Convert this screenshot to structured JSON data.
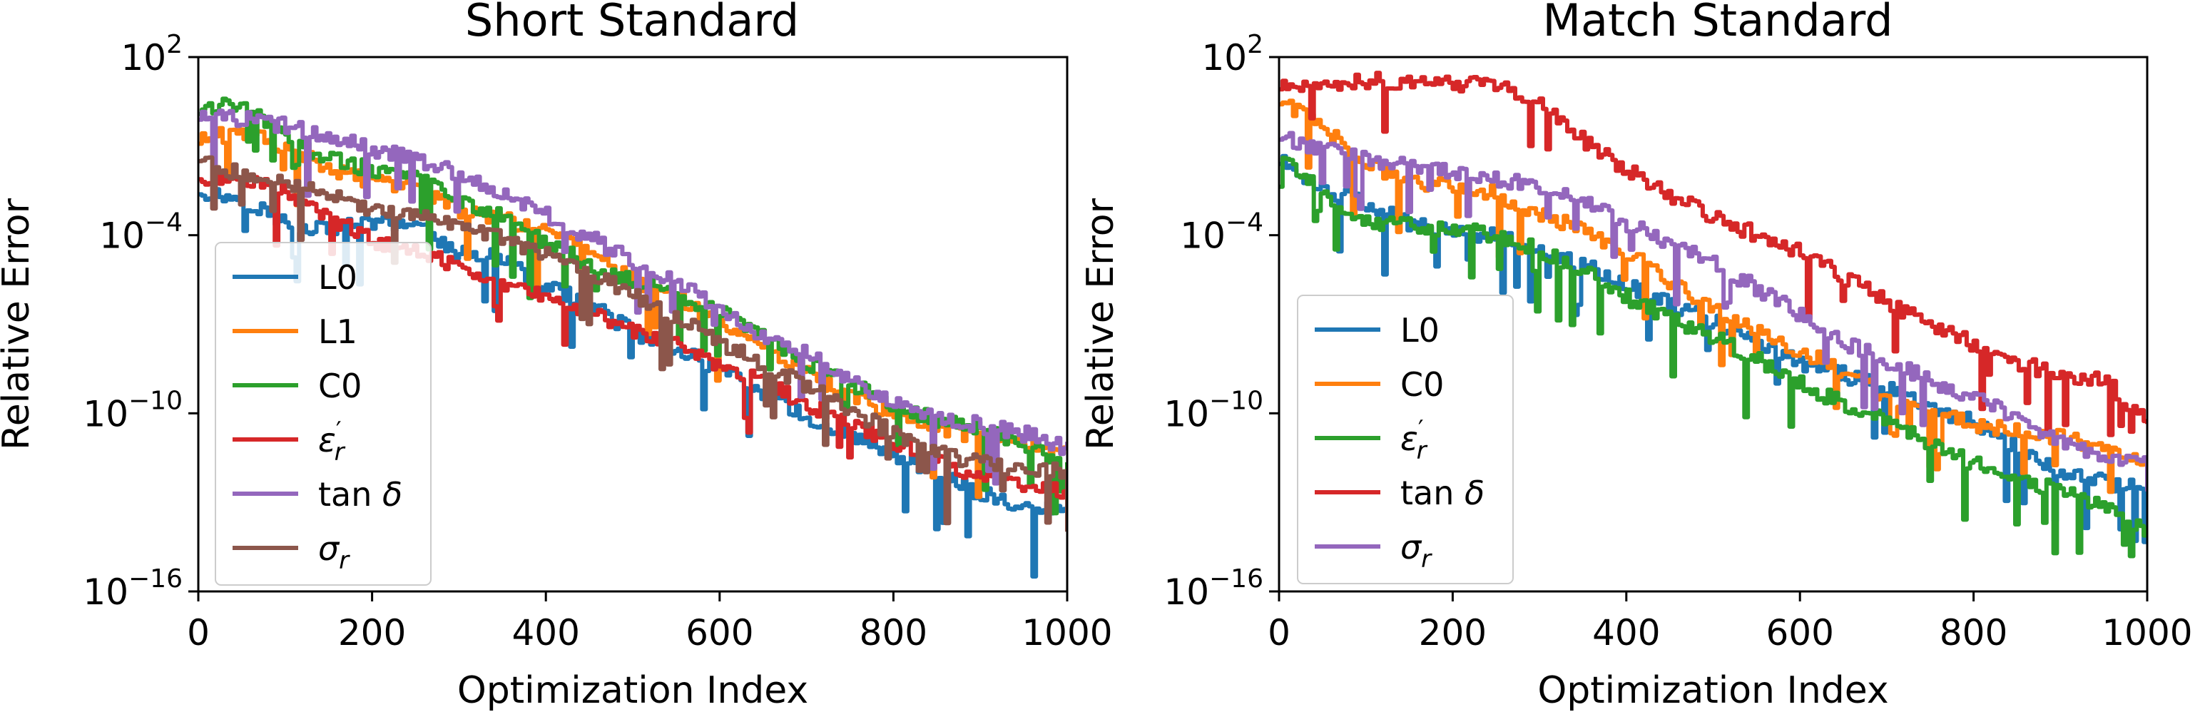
{
  "figure": {
    "left_title": "Short Standard",
    "right_title": "Match Standard"
  },
  "chart_data": [
    {
      "type": "line",
      "title": "Short Standard",
      "xlabel": "Optimization Index",
      "ylabel": "Relative Error",
      "xlim": [
        0,
        1000
      ],
      "ylim": [
        1e-16,
        100
      ],
      "yscale": "log",
      "xticks": [
        "0",
        "200",
        "400",
        "600",
        "800",
        "1000"
      ],
      "yticks": [
        {
          "base": "10",
          "exp": "2"
        },
        {
          "base": "10",
          "exp": "−4"
        },
        {
          "base": "10",
          "exp": "−10"
        },
        {
          "base": "10",
          "exp": "−16"
        }
      ],
      "legend_position": "lower-left",
      "grid": false,
      "series": [
        {
          "name": "L0",
          "color": "#1f77b4",
          "log10_values": [
            [
              0,
              -2.5
            ],
            [
              50,
              -2.8
            ],
            [
              100,
              -3.6
            ],
            [
              150,
              -3.8
            ],
            [
              200,
              -3.6
            ],
            [
              250,
              -3.7
            ],
            [
              300,
              -4.6
            ],
            [
              350,
              -4.8
            ],
            [
              400,
              -5.8
            ],
            [
              450,
              -6.3
            ],
            [
              500,
              -7.3
            ],
            [
              550,
              -7.8
            ],
            [
              600,
              -8.6
            ],
            [
              650,
              -9.3
            ],
            [
              700,
              -10.2
            ],
            [
              750,
              -10.7
            ],
            [
              800,
              -11.4
            ],
            [
              850,
              -12.1
            ],
            [
              900,
              -12.7
            ],
            [
              950,
              -13.2
            ],
            [
              1000,
              -13.3
            ]
          ]
        },
        {
          "name": "L1",
          "color": "#ff7f0e",
          "log10_values": [
            [
              0,
              -0.8
            ],
            [
              50,
              -0.5
            ],
            [
              100,
              -1.0
            ],
            [
              150,
              -1.8
            ],
            [
              200,
              -2.2
            ],
            [
              250,
              -2.4
            ],
            [
              300,
              -3.2
            ],
            [
              350,
              -3.5
            ],
            [
              400,
              -3.8
            ],
            [
              450,
              -4.6
            ],
            [
              500,
              -5.5
            ],
            [
              550,
              -6.1
            ],
            [
              600,
              -7.0
            ],
            [
              650,
              -7.9
            ],
            [
              700,
              -8.7
            ],
            [
              750,
              -9.5
            ],
            [
              800,
              -10.0
            ],
            [
              850,
              -10.5
            ],
            [
              900,
              -10.8
            ],
            [
              950,
              -11.0
            ],
            [
              1000,
              -11.3
            ]
          ]
        },
        {
          "name": "C0",
          "color": "#2ca02c",
          "log10_values": [
            [
              0,
              0.2
            ],
            [
              50,
              0.5
            ],
            [
              100,
              -0.8
            ],
            [
              150,
              -1.4
            ],
            [
              200,
              -1.8
            ],
            [
              250,
              -2.0
            ],
            [
              300,
              -2.8
            ],
            [
              350,
              -3.4
            ],
            [
              400,
              -4.3
            ],
            [
              450,
              -5.0
            ],
            [
              500,
              -5.6
            ],
            [
              550,
              -6.0
            ],
            [
              600,
              -6.6
            ],
            [
              650,
              -7.5
            ],
            [
              700,
              -8.3
            ],
            [
              750,
              -9.0
            ],
            [
              800,
              -9.8
            ],
            [
              850,
              -10.2
            ],
            [
              900,
              -10.5
            ],
            [
              950,
              -11.0
            ],
            [
              1000,
              -11.8
            ]
          ]
        },
        {
          "name": "ε′r",
          "color": "#d62728",
          "log10_values": [
            [
              0,
              -2.0
            ],
            [
              50,
              -2.2
            ],
            [
              100,
              -2.5
            ],
            [
              150,
              -3.4
            ],
            [
              200,
              -4.2
            ],
            [
              250,
              -4.6
            ],
            [
              300,
              -5.0
            ],
            [
              350,
              -5.6
            ],
            [
              400,
              -6.1
            ],
            [
              450,
              -6.6
            ],
            [
              500,
              -7.2
            ],
            [
              550,
              -7.6
            ],
            [
              600,
              -8.4
            ],
            [
              650,
              -9.0
            ],
            [
              700,
              -9.7
            ],
            [
              750,
              -10.3
            ],
            [
              800,
              -11.0
            ],
            [
              850,
              -11.6
            ],
            [
              900,
              -12.1
            ],
            [
              950,
              -12.4
            ],
            [
              1000,
              -12.7
            ]
          ]
        },
        {
          "name": "tan δ",
          "color": "#9467bd",
          "log10_values": [
            [
              0,
              0.0
            ],
            [
              50,
              -0.1
            ],
            [
              100,
              -0.3
            ],
            [
              150,
              -0.7
            ],
            [
              200,
              -1.1
            ],
            [
              250,
              -1.4
            ],
            [
              300,
              -2.0
            ],
            [
              350,
              -2.6
            ],
            [
              400,
              -3.3
            ],
            [
              450,
              -4.1
            ],
            [
              500,
              -4.9
            ],
            [
              550,
              -5.6
            ],
            [
              600,
              -6.5
            ],
            [
              650,
              -7.4
            ],
            [
              700,
              -8.0
            ],
            [
              750,
              -8.9
            ],
            [
              800,
              -9.6
            ],
            [
              850,
              -10.1
            ],
            [
              900,
              -10.4
            ],
            [
              950,
              -10.7
            ],
            [
              1000,
              -11.2
            ]
          ]
        },
        {
          "name": "σr",
          "color": "#8c564b",
          "log10_values": [
            [
              0,
              -1.4
            ],
            [
              50,
              -2.0
            ],
            [
              100,
              -2.3
            ],
            [
              150,
              -2.7
            ],
            [
              200,
              -3.1
            ],
            [
              250,
              -3.3
            ],
            [
              300,
              -3.6
            ],
            [
              350,
              -4.1
            ],
            [
              400,
              -4.7
            ],
            [
              450,
              -5.3
            ],
            [
              500,
              -6.0
            ],
            [
              550,
              -6.8
            ],
            [
              600,
              -7.6
            ],
            [
              650,
              -8.4
            ],
            [
              700,
              -9.1
            ],
            [
              750,
              -9.9
            ],
            [
              800,
              -10.7
            ],
            [
              850,
              -11.3
            ],
            [
              900,
              -11.7
            ],
            [
              950,
              -11.9
            ],
            [
              1000,
              -12.0
            ]
          ]
        }
      ]
    },
    {
      "type": "line",
      "title": "Match Standard",
      "xlabel": "Optimization Index",
      "ylabel": "Relative Error",
      "xlim": [
        0,
        1000
      ],
      "ylim": [
        1e-16,
        100
      ],
      "yscale": "log",
      "xticks": [
        "0",
        "200",
        "400",
        "600",
        "800",
        "1000"
      ],
      "yticks": [
        {
          "base": "10",
          "exp": "2"
        },
        {
          "base": "10",
          "exp": "−4"
        },
        {
          "base": "10",
          "exp": "−10"
        },
        {
          "base": "10",
          "exp": "−16"
        }
      ],
      "legend_position": "lower-left",
      "grid": false,
      "series": [
        {
          "name": "L0",
          "color": "#1f77b4",
          "log10_values": [
            [
              0,
              -1.5
            ],
            [
              50,
              -2.4
            ],
            [
              100,
              -3.0
            ],
            [
              150,
              -3.6
            ],
            [
              200,
              -3.9
            ],
            [
              250,
              -4.0
            ],
            [
              300,
              -4.6
            ],
            [
              350,
              -5.0
            ],
            [
              400,
              -5.7
            ],
            [
              450,
              -6.3
            ],
            [
              500,
              -6.9
            ],
            [
              550,
              -7.6
            ],
            [
              600,
              -8.3
            ],
            [
              650,
              -8.7
            ],
            [
              700,
              -9.2
            ],
            [
              750,
              -9.8
            ],
            [
              800,
              -10.3
            ],
            [
              850,
              -11.2
            ],
            [
              900,
              -12.0
            ],
            [
              950,
              -12.3
            ],
            [
              1000,
              -12.6
            ]
          ]
        },
        {
          "name": "C0",
          "color": "#ff7f0e",
          "log10_values": [
            [
              0,
              0.5
            ],
            [
              50,
              -0.4
            ],
            [
              100,
              -1.6
            ],
            [
              150,
              -2.2
            ],
            [
              200,
              -2.4
            ],
            [
              250,
              -2.6
            ],
            [
              300,
              -3.3
            ],
            [
              350,
              -3.8
            ],
            [
              400,
              -4.6
            ],
            [
              450,
              -5.6
            ],
            [
              500,
              -6.4
            ],
            [
              550,
              -7.3
            ],
            [
              600,
              -7.9
            ],
            [
              650,
              -8.6
            ],
            [
              700,
              -9.5
            ],
            [
              750,
              -10.0
            ],
            [
              800,
              -10.4
            ],
            [
              850,
              -10.6
            ],
            [
              900,
              -10.8
            ],
            [
              950,
              -11.3
            ],
            [
              1000,
              -11.6
            ]
          ]
        },
        {
          "name": "ε′r",
          "color": "#2ca02c",
          "log10_values": [
            [
              0,
              -1.2
            ],
            [
              50,
              -2.7
            ],
            [
              100,
              -3.5
            ],
            [
              150,
              -3.7
            ],
            [
              200,
              -3.8
            ],
            [
              250,
              -4.0
            ],
            [
              300,
              -4.5
            ],
            [
              350,
              -5.2
            ],
            [
              400,
              -6.1
            ],
            [
              450,
              -6.8
            ],
            [
              500,
              -7.4
            ],
            [
              550,
              -8.2
            ],
            [
              600,
              -9.0
            ],
            [
              650,
              -9.7
            ],
            [
              700,
              -10.3
            ],
            [
              750,
              -11.0
            ],
            [
              800,
              -11.7
            ],
            [
              850,
              -12.2
            ],
            [
              900,
              -12.6
            ],
            [
              950,
              -13.2
            ],
            [
              1000,
              -14.0
            ]
          ]
        },
        {
          "name": "tan δ",
          "color": "#d62728",
          "log10_values": [
            [
              0,
              1.0
            ],
            [
              50,
              1.1
            ],
            [
              100,
              1.2
            ],
            [
              150,
              1.2
            ],
            [
              200,
              1.1
            ],
            [
              250,
              1.1
            ],
            [
              300,
              0.5
            ],
            [
              350,
              -0.8
            ],
            [
              400,
              -1.8
            ],
            [
              450,
              -2.7
            ],
            [
              500,
              -3.4
            ],
            [
              550,
              -4.0
            ],
            [
              600,
              -4.6
            ],
            [
              650,
              -5.4
            ],
            [
              700,
              -6.3
            ],
            [
              750,
              -7.0
            ],
            [
              800,
              -7.7
            ],
            [
              850,
              -8.3
            ],
            [
              900,
              -8.7
            ],
            [
              950,
              -8.9
            ],
            [
              1000,
              -10.3
            ]
          ]
        },
        {
          "name": "σr",
          "color": "#9467bd",
          "log10_values": [
            [
              0,
              -0.7
            ],
            [
              50,
              -1.1
            ],
            [
              100,
              -1.4
            ],
            [
              150,
              -1.7
            ],
            [
              200,
              -1.9
            ],
            [
              250,
              -2.1
            ],
            [
              300,
              -2.4
            ],
            [
              350,
              -2.9
            ],
            [
              400,
              -3.6
            ],
            [
              450,
              -4.3
            ],
            [
              500,
              -5.0
            ],
            [
              550,
              -5.8
            ],
            [
              600,
              -6.7
            ],
            [
              650,
              -7.6
            ],
            [
              700,
              -8.3
            ],
            [
              750,
              -8.9
            ],
            [
              800,
              -9.5
            ],
            [
              850,
              -10.2
            ],
            [
              900,
              -10.9
            ],
            [
              950,
              -11.5
            ],
            [
              1000,
              -11.7
            ]
          ]
        }
      ]
    }
  ]
}
